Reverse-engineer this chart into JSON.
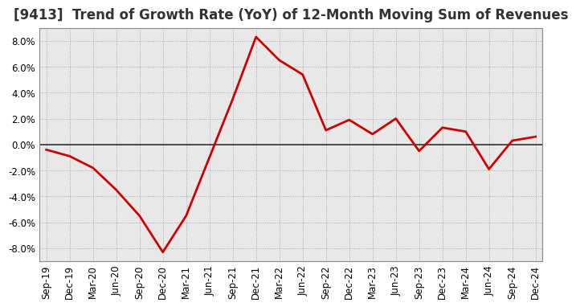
{
  "title": "[9413]  Trend of Growth Rate (YoY) of 12-Month Moving Sum of Revenues",
  "x_labels": [
    "Sep-19",
    "Dec-19",
    "Mar-20",
    "Jun-20",
    "Sep-20",
    "Dec-20",
    "Mar-21",
    "Jun-21",
    "Sep-21",
    "Dec-21",
    "Mar-22",
    "Jun-22",
    "Sep-22",
    "Dec-22",
    "Mar-23",
    "Jun-23",
    "Sep-23",
    "Dec-23",
    "Mar-24",
    "Jun-24",
    "Sep-24",
    "Dec-24"
  ],
  "y_values": [
    -0.4,
    -0.9,
    -1.8,
    -3.5,
    -5.5,
    -8.3,
    -5.5,
    -1.0,
    3.5,
    8.3,
    6.5,
    5.4,
    1.1,
    1.9,
    0.8,
    2.0,
    -0.5,
    1.3,
    1.0,
    -1.9,
    0.3,
    0.6
  ],
  "line_color": "#cc0000",
  "line_width": 2.0,
  "background_color": "#ffffff",
  "plot_bg_color": "#e8e8e8",
  "grid_color": "#999999",
  "zero_line_color": "#333333",
  "ylim": [
    -9.0,
    9.0
  ],
  "yticks": [
    -8.0,
    -6.0,
    -4.0,
    -2.0,
    0.0,
    2.0,
    4.0,
    6.0,
    8.0
  ],
  "title_fontsize": 12,
  "tick_fontsize": 8.5,
  "title_color": "#333333"
}
